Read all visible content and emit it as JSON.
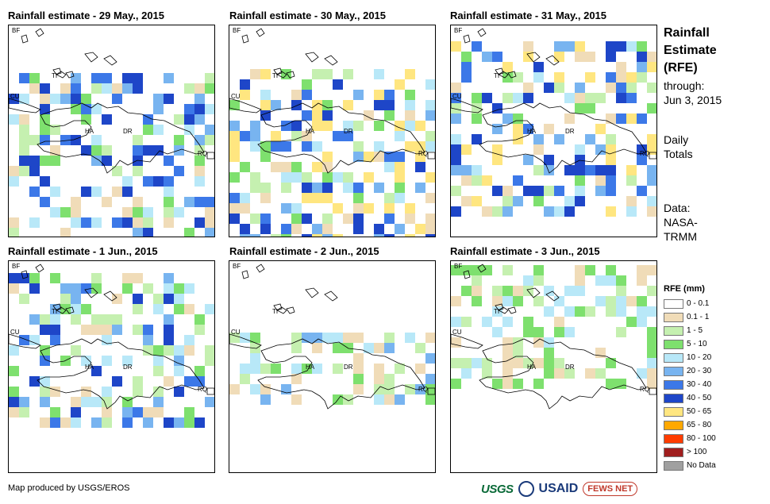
{
  "panels": [
    {
      "title": "Rainfall estimate - 29 May., 2015"
    },
    {
      "title": "Rainfall estimate - 30 May., 2015"
    },
    {
      "title": "Rainfall estimate - 31 May., 2015"
    },
    {
      "title": "Rainfall estimate - 1 Jun., 2015"
    },
    {
      "title": "Rainfall estimate - 2 Jun., 2015"
    },
    {
      "title": "Rainfall estimate - 3 Jun., 2015"
    }
  ],
  "map_labels": {
    "bf": "BF",
    "cu": "CU",
    "ti": "TI",
    "ha": "HA",
    "dr": "DR",
    "rq": "RQ"
  },
  "side": {
    "title_line1": "Rainfall",
    "title_line2": "Estimate",
    "title_line3": "(RFE)",
    "through_label": "through:",
    "through_date": "Jun 3, 2015",
    "totals_line1": "Daily",
    "totals_line2": "Totals",
    "data_label": "Data:",
    "data_source1": "NASA-",
    "data_source2": "TRMM"
  },
  "legend": {
    "title": "RFE (mm)",
    "classes": [
      {
        "label": "0 - 0.1",
        "color": "#ffffff"
      },
      {
        "label": "0.1 - 1",
        "color": "#f0dcb8"
      },
      {
        "label": "1 - 5",
        "color": "#c5f0b0"
      },
      {
        "label": "5 - 10",
        "color": "#7ee06e"
      },
      {
        "label": "10 - 20",
        "color": "#b8e8f8"
      },
      {
        "label": "20 - 30",
        "color": "#78b4f0"
      },
      {
        "label": "30 - 40",
        "color": "#3c78e8"
      },
      {
        "label": "40 - 50",
        "color": "#1e46c8"
      },
      {
        "label": "50 - 65",
        "color": "#ffe680"
      },
      {
        "label": "65 - 80",
        "color": "#ffa800"
      },
      {
        "label": "80 - 100",
        "color": "#ff3c00"
      },
      {
        "label": "> 100",
        "color": "#a01e1e"
      },
      {
        "label": "No Data",
        "color": "#a0a0a0"
      }
    ]
  },
  "footer": {
    "credit": "Map produced by USGS/EROS",
    "logo_usgs": "USGS",
    "logo_usaid": "USAID",
    "logo_fews": "FEWS NET"
  }
}
